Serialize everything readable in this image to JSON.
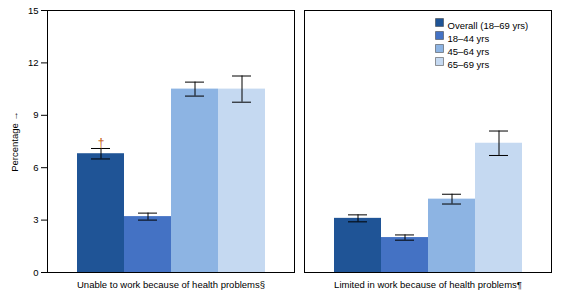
{
  "chart_data": {
    "type": "bar",
    "categories": [
      "Unable to work because of health problems§",
      "Limited in work because of health problems¶"
    ],
    "series": [
      {
        "name": "Overall (18–69 yrs)",
        "color": "#1f5496",
        "values": [
          6.8,
          3.1
        ],
        "errors": [
          0.3,
          0.2
        ]
      },
      {
        "name": "18–44 yrs",
        "color": "#4472c4",
        "values": [
          3.2,
          2.0
        ],
        "errors": [
          0.2,
          0.15
        ]
      },
      {
        "name": "45–64 yrs",
        "color": "#8db4e3",
        "values": [
          10.5,
          4.2
        ],
        "errors": [
          0.4,
          0.28
        ]
      },
      {
        "name": "65–69 yrs",
        "color": "#c5d9f1",
        "values": [
          10.5,
          7.4
        ],
        "errors": [
          0.75,
          0.7
        ]
      }
    ],
    "ylabel": "Percentage",
    "ylim": [
      0,
      15
    ],
    "yticks": [
      0,
      3,
      6,
      9,
      12,
      15
    ],
    "grid": false,
    "legend": "upper right",
    "annotations": [
      {
        "text": "†",
        "category": "Unable to work because of health problems§",
        "series": "Overall (18–69 yrs)",
        "y": 7.2,
        "color": "#c55a11"
      }
    ]
  }
}
